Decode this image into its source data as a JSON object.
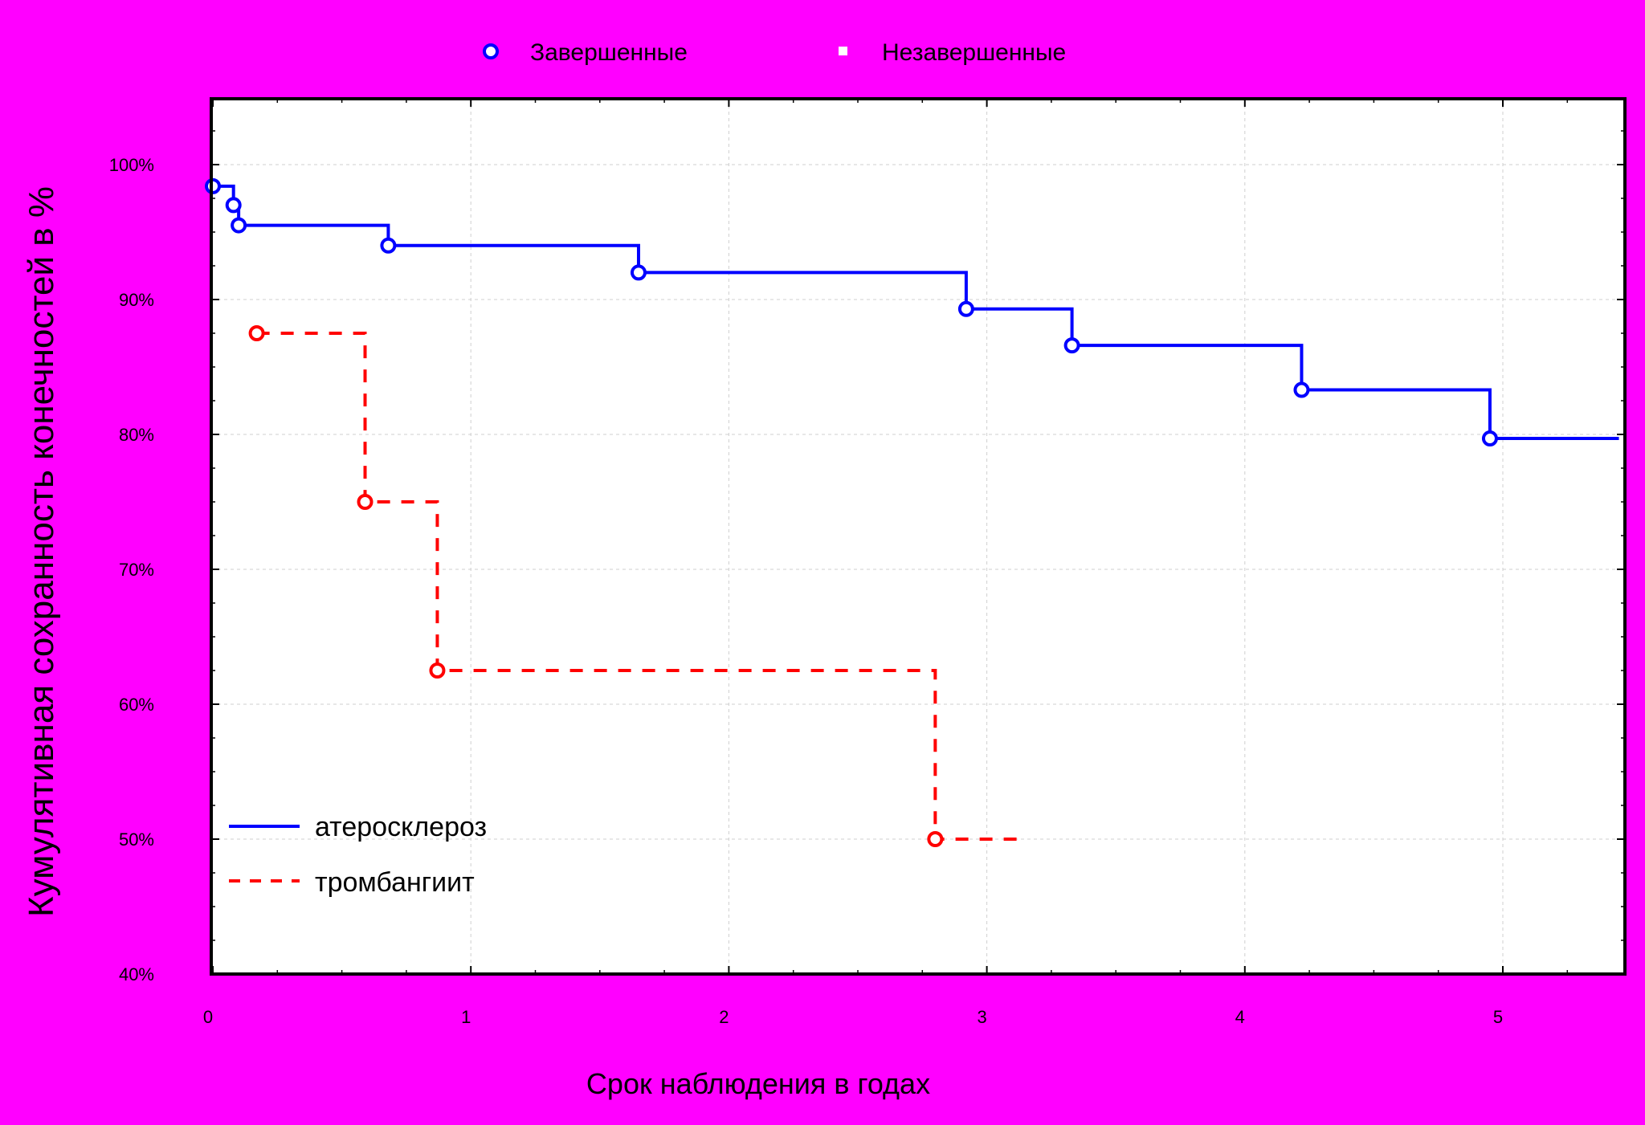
{
  "chart_data": {
    "type": "line",
    "subtype": "kaplan-meier",
    "xlabel": "Срок наблюдения в годах",
    "ylabel": "Кумулятивная сохранность конечностей в %",
    "xlim": [
      0,
      5.5
    ],
    "ylim": [
      40,
      105
    ],
    "x_ticks": [
      "0",
      "1",
      "2",
      "3",
      "4",
      "5"
    ],
    "y_ticks": [
      "40%",
      "50%",
      "60%",
      "70%",
      "80%",
      "90%",
      "100%"
    ],
    "grid": true,
    "marker_legend": {
      "position": "top-center",
      "completed": "Завершенные",
      "censored": "Незавершенные"
    },
    "legend": {
      "position": "bottom-left"
    },
    "series": [
      {
        "name": "атеросклероз",
        "color": "#0000ff",
        "style": "solid",
        "steps": [
          [
            0,
            98.4
          ],
          [
            0.08,
            97.0
          ],
          [
            0.1,
            95.5
          ],
          [
            0.68,
            94.0
          ],
          [
            1.65,
            92.0
          ],
          [
            2.92,
            89.3
          ],
          [
            3.33,
            86.6
          ],
          [
            4.22,
            83.3
          ],
          [
            4.95,
            79.7
          ],
          [
            5.45,
            79.7
          ]
        ],
        "events": [
          [
            0,
            98.4
          ],
          [
            0.08,
            97.0
          ],
          [
            0.1,
            95.5
          ],
          [
            0.68,
            94.0
          ],
          [
            1.65,
            92.0
          ],
          [
            2.92,
            89.3
          ],
          [
            3.33,
            86.6
          ],
          [
            4.22,
            83.3
          ],
          [
            4.95,
            79.7
          ]
        ]
      },
      {
        "name": "тромбангиит",
        "color": "#ff0000",
        "style": "dashed",
        "steps": [
          [
            0.17,
            87.5
          ],
          [
            0.59,
            75.0
          ],
          [
            0.87,
            62.5
          ],
          [
            2.8,
            50.0
          ],
          [
            3.15,
            50.0
          ]
        ],
        "events": [
          [
            0.17,
            87.5
          ],
          [
            0.59,
            75.0
          ],
          [
            0.87,
            62.5
          ],
          [
            2.8,
            50.0
          ]
        ]
      }
    ]
  }
}
